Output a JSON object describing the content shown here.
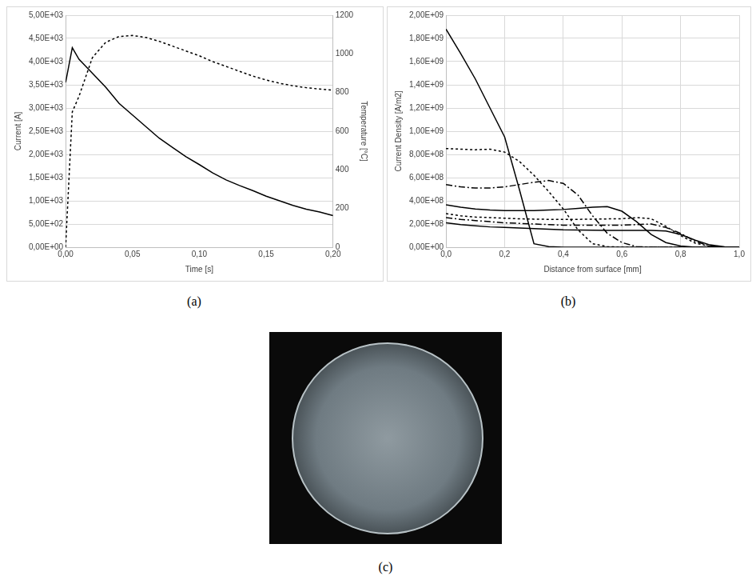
{
  "chart_data": [
    {
      "type": "line",
      "panel_label": "(a)",
      "grid": "y",
      "x_label": "Time [s]",
      "y_label": "Current [A]",
      "y2_label": "Temperature [°C]",
      "xlim": [
        0,
        0.2
      ],
      "xticks": [
        {
          "value": 0,
          "label": "0,00"
        },
        {
          "value": 0.05,
          "label": "0,05"
        },
        {
          "value": 0.1,
          "label": "0,10"
        },
        {
          "value": 0.15,
          "label": "0,15"
        },
        {
          "value": 0.2,
          "label": "0,20"
        }
      ],
      "ylim": [
        0,
        5000
      ],
      "yticks": [
        {
          "value": 0,
          "label": "0,00E+00"
        },
        {
          "value": 500,
          "label": "5,00E+02"
        },
        {
          "value": 1000,
          "label": "1,00E+03"
        },
        {
          "value": 1500,
          "label": "1,50E+03"
        },
        {
          "value": 2000,
          "label": "2,00E+03"
        },
        {
          "value": 2500,
          "label": "2,50E+03"
        },
        {
          "value": 3000,
          "label": "3,00E+03"
        },
        {
          "value": 3500,
          "label": "3,50E+03"
        },
        {
          "value": 4000,
          "label": "4,00E+03"
        },
        {
          "value": 4500,
          "label": "4,50E+03"
        },
        {
          "value": 5000,
          "label": "5,00E+03"
        }
      ],
      "y2lim": [
        0,
        1200
      ],
      "y2ticks": [
        0,
        200,
        400,
        600,
        800,
        1000,
        1200
      ],
      "x": [
        0,
        0.005,
        0.01,
        0.02,
        0.03,
        0.04,
        0.05,
        0.06,
        0.07,
        0.08,
        0.09,
        0.1,
        0.11,
        0.12,
        0.13,
        0.14,
        0.15,
        0.16,
        0.17,
        0.18,
        0.19,
        0.2
      ],
      "series": [
        {
          "color": "#000000",
          "line_style": "solid",
          "values": [
            3550,
            4300,
            4050,
            3750,
            3450,
            3100,
            2850,
            2600,
            2350,
            2150,
            1950,
            1780,
            1600,
            1450,
            1330,
            1220,
            1100,
            1000,
            900,
            820,
            760,
            680
          ]
        },
        {
          "color": "#000000",
          "line_style": "dotted",
          "axis": "y2",
          "values": [
            0,
            700,
            780,
            980,
            1060,
            1090,
            1095,
            1085,
            1065,
            1040,
            1015,
            990,
            960,
            935,
            910,
            885,
            865,
            848,
            835,
            825,
            818,
            812
          ]
        }
      ]
    },
    {
      "type": "line",
      "panel_label": "(b)",
      "grid": true,
      "x_label": "Distance from surface [mm]",
      "y_label": "Current Density [A/m2]",
      "xlim": [
        0,
        1
      ],
      "xticks": [
        {
          "value": 0,
          "label": "0,0"
        },
        {
          "value": 0.2,
          "label": "0,2"
        },
        {
          "value": 0.4,
          "label": "0,4"
        },
        {
          "value": 0.6,
          "label": "0,6"
        },
        {
          "value": 0.8,
          "label": "0,8"
        },
        {
          "value": 1,
          "label": "1,0"
        }
      ],
      "ylim": [
        0,
        2000000000
      ],
      "yticks": [
        {
          "value": 0,
          "label": "0,00E+00"
        },
        {
          "value": 200000000,
          "label": "2,00E+08"
        },
        {
          "value": 400000000,
          "label": "4,00E+08"
        },
        {
          "value": 600000000,
          "label": "6,00E+08"
        },
        {
          "value": 800000000,
          "label": "8,00E+08"
        },
        {
          "value": 1000000000,
          "label": "1,00E+09"
        },
        {
          "value": 1200000000,
          "label": "1,20E+09"
        },
        {
          "value": 1400000000,
          "label": "1,40E+09"
        },
        {
          "value": 1600000000,
          "label": "1,60E+09"
        },
        {
          "value": 1800000000,
          "label": "1,80E+09"
        },
        {
          "value": 2000000000,
          "label": "2,00E+09"
        }
      ],
      "x": [
        0,
        0.05,
        0.1,
        0.15,
        0.2,
        0.25,
        0.3,
        0.35,
        0.4,
        0.45,
        0.5,
        0.55,
        0.6,
        0.65,
        0.7,
        0.75,
        0.8,
        0.85,
        0.9,
        0.95,
        1
      ],
      "series": [
        {
          "color": "#000000",
          "line_style": "solid",
          "values": [
            1880000000,
            1670000000,
            1450000000,
            1200000000,
            950000000,
            500000000,
            30000000,
            5000000,
            0,
            0,
            0,
            0,
            0,
            0,
            0,
            0,
            0,
            0,
            0,
            0,
            0
          ]
        },
        {
          "color": "#000000",
          "line_style": "dotted",
          "values": [
            850000000,
            845000000,
            840000000,
            845000000,
            820000000,
            740000000,
            620000000,
            480000000,
            330000000,
            150000000,
            30000000,
            5000000,
            0,
            0,
            0,
            0,
            0,
            0,
            0,
            0,
            0
          ]
        },
        {
          "color": "#000000",
          "line_style": "dashdot",
          "values": [
            540000000,
            520000000,
            510000000,
            510000000,
            520000000,
            540000000,
            560000000,
            575000000,
            550000000,
            450000000,
            270000000,
            120000000,
            40000000,
            5000000,
            0,
            0,
            0,
            0,
            0,
            0,
            0
          ]
        },
        {
          "color": "#000000",
          "line_style": "solid",
          "values": [
            365000000,
            345000000,
            330000000,
            320000000,
            315000000,
            315000000,
            315000000,
            320000000,
            325000000,
            335000000,
            345000000,
            350000000,
            310000000,
            220000000,
            110000000,
            40000000,
            10000000,
            0,
            0,
            0,
            0
          ]
        },
        {
          "color": "#000000",
          "line_style": "dotted",
          "values": [
            290000000,
            270000000,
            260000000,
            255000000,
            250000000,
            245000000,
            242000000,
            240000000,
            240000000,
            240000000,
            242000000,
            244000000,
            245000000,
            255000000,
            245000000,
            180000000,
            100000000,
            35000000,
            8000000,
            0,
            0
          ]
        },
        {
          "color": "#000000",
          "line_style": "dashdot",
          "values": [
            255000000,
            240000000,
            230000000,
            220000000,
            210000000,
            205000000,
            200000000,
            195000000,
            190000000,
            190000000,
            190000000,
            190000000,
            190000000,
            195000000,
            200000000,
            170000000,
            120000000,
            50000000,
            10000000,
            0,
            0
          ]
        },
        {
          "color": "#000000",
          "line_style": "solid",
          "values": [
            210000000,
            195000000,
            185000000,
            175000000,
            170000000,
            165000000,
            160000000,
            155000000,
            150000000,
            148000000,
            146000000,
            145000000,
            145000000,
            145000000,
            145000000,
            140000000,
            110000000,
            60000000,
            20000000,
            3000000,
            0
          ]
        }
      ]
    }
  ],
  "image": {
    "panel_label": "(c)"
  }
}
